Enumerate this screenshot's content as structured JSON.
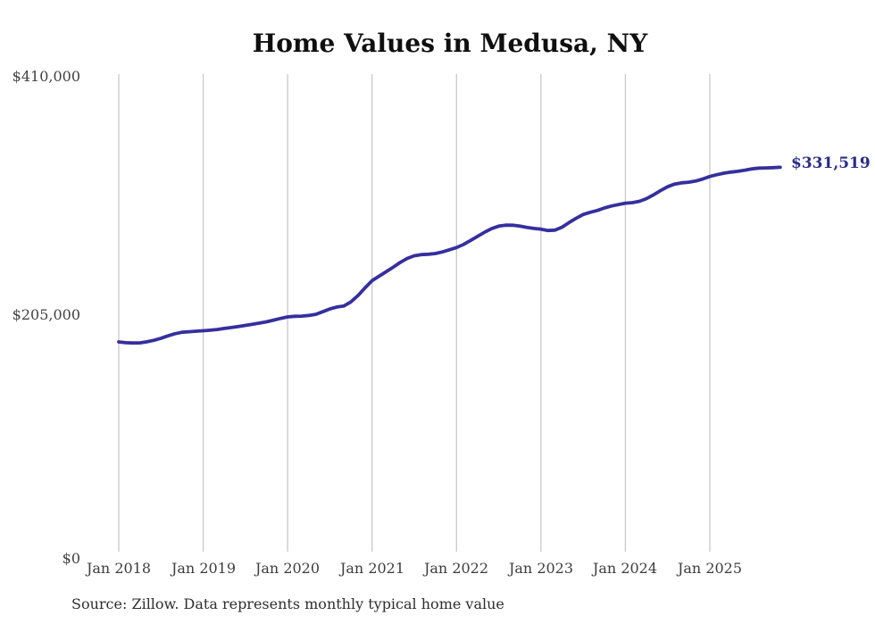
{
  "title": "Home Values in Medusa, NY",
  "source_note": "Source: Zillow. Data represents monthly typical home value",
  "colors": {
    "line": "#352f9e",
    "end_label": "#2a2d85",
    "grid": "#c9c9c9",
    "title": "#0f0f0f",
    "axis_text": "#3d3d3d"
  },
  "chart_data": {
    "type": "line",
    "title": "Home Values in Medusa, NY",
    "x_tick_labels": [
      "Jan 2018",
      "Jan 2019",
      "Jan 2020",
      "Jan 2021",
      "Jan 2022",
      "Jan 2023",
      "Jan 2024",
      "Jan 2025"
    ],
    "y_tick_labels": [
      "$410,000",
      "$205,000",
      "$0"
    ],
    "ylim": [
      0,
      410000
    ],
    "grid": "vertical-only",
    "legend": "none",
    "frequency": "monthly",
    "x_start_month": "Jan 2018",
    "last_value": 331519,
    "last_value_label": "$331,519",
    "series": [
      {
        "name": "typical_home_value",
        "values": [
          181600,
          180900,
          180700,
          180800,
          181700,
          183000,
          184800,
          186800,
          188700,
          189900,
          190400,
          190800,
          191200,
          191700,
          192300,
          193200,
          194000,
          194900,
          195800,
          196800,
          197800,
          198900,
          200300,
          201800,
          203100,
          203600,
          203800,
          204300,
          205300,
          207500,
          209900,
          211600,
          212400,
          216000,
          221500,
          228000,
          234200,
          238000,
          241900,
          245800,
          249800,
          253300,
          255600,
          256600,
          256900,
          257500,
          258900,
          260700,
          262600,
          265300,
          268700,
          272300,
          275800,
          278900,
          281000,
          281900,
          281800,
          281000,
          279900,
          279000,
          278400,
          277300,
          277600,
          280100,
          284100,
          287800,
          291000,
          292900,
          294400,
          296600,
          298300,
          299500,
          300700,
          301200,
          302300,
          304600,
          307900,
          311500,
          314800,
          317100,
          318200,
          318700,
          319700,
          321500,
          323600,
          325200,
          326500,
          327400,
          328100,
          329100,
          330200,
          330800,
          331000,
          331200,
          331519
        ]
      }
    ]
  }
}
